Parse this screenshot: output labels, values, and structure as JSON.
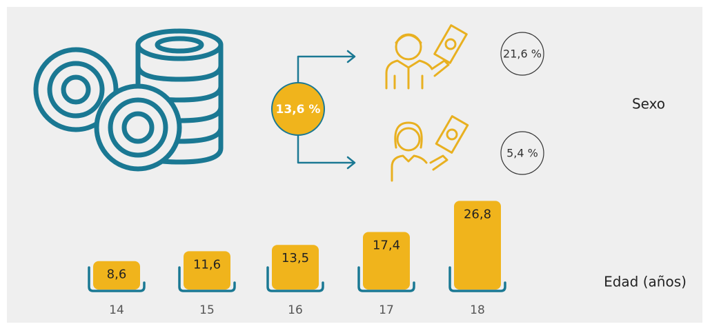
{
  "overall": "13,6 %",
  "sex": {
    "title": "Sexo",
    "values": [
      "21,6 %",
      "5,4 %"
    ]
  },
  "chart_data": {
    "type": "bar",
    "x_label": "Edad (años)",
    "categories": [
      "14",
      "15",
      "16",
      "17",
      "18"
    ],
    "values": [
      8.6,
      11.6,
      13.5,
      17.4,
      26.8
    ],
    "value_labels": [
      "8,6",
      "11,6",
      "13,5",
      "17,4",
      "26,8"
    ],
    "color": "#f0b41c",
    "bracket_color": "#1a7893"
  }
}
